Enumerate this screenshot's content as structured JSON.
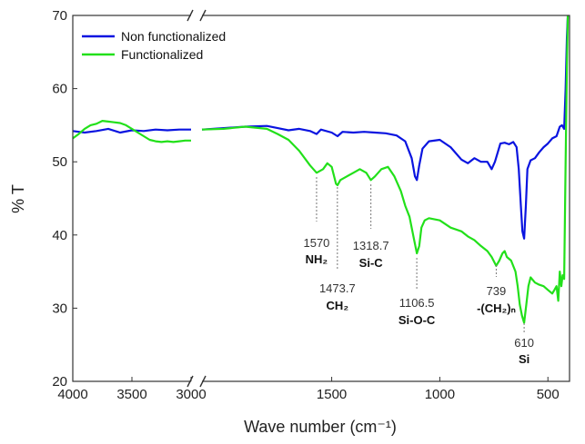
{
  "chart_data": {
    "type": "line",
    "title": "",
    "xlabel": "Wave number (cm⁻¹)",
    "ylabel": "% T",
    "xlim": [
      4000,
      400
    ],
    "ylim": [
      20,
      70
    ],
    "axis_break": [
      3000,
      2100
    ],
    "x_ticks": [
      4000,
      3500,
      3000,
      1500,
      1000,
      500
    ],
    "y_ticks": [
      20,
      30,
      40,
      50,
      60,
      70
    ],
    "legend_position": "top-left",
    "series": [
      {
        "name": "Non functionalized",
        "color": "#0a14e0",
        "points": [
          [
            4000,
            54.2
          ],
          [
            3900,
            54.0
          ],
          [
            3800,
            54.2
          ],
          [
            3700,
            54.5
          ],
          [
            3600,
            54.0
          ],
          [
            3500,
            54.3
          ],
          [
            3400,
            54.2
          ],
          [
            3300,
            54.4
          ],
          [
            3200,
            54.3
          ],
          [
            3100,
            54.4
          ],
          [
            3000,
            54.4
          ],
          [
            2100,
            54.4
          ],
          [
            2000,
            54.6
          ],
          [
            1900,
            54.8
          ],
          [
            1800,
            54.9
          ],
          [
            1750,
            54.6
          ],
          [
            1700,
            54.3
          ],
          [
            1650,
            54.5
          ],
          [
            1600,
            54.2
          ],
          [
            1570,
            53.8
          ],
          [
            1550,
            54.4
          ],
          [
            1500,
            54.0
          ],
          [
            1473,
            53.5
          ],
          [
            1450,
            54.1
          ],
          [
            1400,
            54.0
          ],
          [
            1350,
            54.1
          ],
          [
            1300,
            54.0
          ],
          [
            1250,
            53.9
          ],
          [
            1200,
            53.6
          ],
          [
            1160,
            52.8
          ],
          [
            1130,
            50.5
          ],
          [
            1115,
            48.0
          ],
          [
            1106,
            47.5
          ],
          [
            1095,
            49.5
          ],
          [
            1080,
            51.8
          ],
          [
            1050,
            52.8
          ],
          [
            1000,
            53.0
          ],
          [
            950,
            52.0
          ],
          [
            900,
            50.3
          ],
          [
            870,
            49.8
          ],
          [
            840,
            50.5
          ],
          [
            810,
            50.0
          ],
          [
            780,
            50.0
          ],
          [
            760,
            49.0
          ],
          [
            745,
            50.0
          ],
          [
            720,
            52.5
          ],
          [
            700,
            52.6
          ],
          [
            680,
            52.4
          ],
          [
            660,
            52.7
          ],
          [
            645,
            52.0
          ],
          [
            635,
            49.0
          ],
          [
            625,
            44.0
          ],
          [
            618,
            40.5
          ],
          [
            610,
            39.5
          ],
          [
            602,
            44.0
          ],
          [
            595,
            49.0
          ],
          [
            580,
            50.2
          ],
          [
            560,
            50.5
          ],
          [
            540,
            51.3
          ],
          [
            520,
            52.0
          ],
          [
            500,
            52.5
          ],
          [
            480,
            53.2
          ],
          [
            460,
            53.5
          ],
          [
            445,
            54.8
          ],
          [
            435,
            55.0
          ],
          [
            425,
            54.5
          ],
          [
            418,
            60.0
          ],
          [
            412,
            67.0
          ],
          [
            408,
            70.0
          ]
        ]
      },
      {
        "name": "Functionalized",
        "color": "#22e01a",
        "points": [
          [
            4000,
            53.2
          ],
          [
            3950,
            53.8
          ],
          [
            3900,
            54.5
          ],
          [
            3850,
            55.0
          ],
          [
            3800,
            55.2
          ],
          [
            3750,
            55.6
          ],
          [
            3700,
            55.5
          ],
          [
            3650,
            55.4
          ],
          [
            3600,
            55.3
          ],
          [
            3550,
            55.0
          ],
          [
            3500,
            54.5
          ],
          [
            3450,
            54.0
          ],
          [
            3400,
            53.5
          ],
          [
            3350,
            53.0
          ],
          [
            3300,
            52.8
          ],
          [
            3250,
            52.7
          ],
          [
            3200,
            52.8
          ],
          [
            3150,
            52.7
          ],
          [
            3100,
            52.8
          ],
          [
            3050,
            52.9
          ],
          [
            3000,
            52.9
          ],
          [
            2100,
            54.4
          ],
          [
            2000,
            54.5
          ],
          [
            1900,
            54.8
          ],
          [
            1800,
            54.5
          ],
          [
            1750,
            53.8
          ],
          [
            1700,
            53.0
          ],
          [
            1650,
            51.5
          ],
          [
            1600,
            49.5
          ],
          [
            1570,
            48.5
          ],
          [
            1540,
            49.0
          ],
          [
            1520,
            49.8
          ],
          [
            1500,
            49.3
          ],
          [
            1480,
            47.0
          ],
          [
            1473,
            46.8
          ],
          [
            1460,
            47.5
          ],
          [
            1430,
            48.0
          ],
          [
            1400,
            48.5
          ],
          [
            1370,
            49.0
          ],
          [
            1340,
            48.5
          ],
          [
            1319,
            47.5
          ],
          [
            1300,
            48.0
          ],
          [
            1270,
            49.0
          ],
          [
            1240,
            49.3
          ],
          [
            1210,
            48.0
          ],
          [
            1180,
            46.0
          ],
          [
            1160,
            44.0
          ],
          [
            1140,
            42.5
          ],
          [
            1120,
            39.5
          ],
          [
            1106,
            37.5
          ],
          [
            1095,
            38.5
          ],
          [
            1085,
            41.0
          ],
          [
            1070,
            42.0
          ],
          [
            1050,
            42.3
          ],
          [
            1000,
            42.0
          ],
          [
            950,
            41.0
          ],
          [
            900,
            40.5
          ],
          [
            870,
            39.8
          ],
          [
            840,
            39.3
          ],
          [
            810,
            38.5
          ],
          [
            780,
            37.8
          ],
          [
            760,
            37.0
          ],
          [
            739,
            35.8
          ],
          [
            725,
            36.5
          ],
          [
            710,
            37.5
          ],
          [
            700,
            37.8
          ],
          [
            690,
            37.0
          ],
          [
            670,
            36.5
          ],
          [
            650,
            35.0
          ],
          [
            640,
            33.0
          ],
          [
            630,
            30.5
          ],
          [
            620,
            29.0
          ],
          [
            610,
            28.0
          ],
          [
            600,
            30.5
          ],
          [
            590,
            33.0
          ],
          [
            580,
            34.2
          ],
          [
            560,
            33.5
          ],
          [
            540,
            33.2
          ],
          [
            520,
            33.0
          ],
          [
            500,
            32.5
          ],
          [
            480,
            32.0
          ],
          [
            470,
            32.5
          ],
          [
            460,
            33.0
          ],
          [
            452,
            31.0
          ],
          [
            445,
            35.0
          ],
          [
            438,
            33.0
          ],
          [
            432,
            34.5
          ],
          [
            425,
            34.0
          ],
          [
            418,
            50.0
          ],
          [
            412,
            63.0
          ],
          [
            408,
            70.0
          ]
        ]
      }
    ],
    "annotations": [
      {
        "number": "1570",
        "group": "NH₂",
        "x": 1570
      },
      {
        "number": "1473.7",
        "group": "CH₂",
        "x": 1473.7
      },
      {
        "number": "1318.7",
        "group": "Si-C",
        "x": 1318.7
      },
      {
        "number": "1106.5",
        "group": "Si-O-C",
        "x": 1106.5
      },
      {
        "number": "739",
        "group": "-(CH₂)ₙ",
        "x": 739
      },
      {
        "number": "610",
        "group": "Si",
        "x": 610
      }
    ]
  }
}
